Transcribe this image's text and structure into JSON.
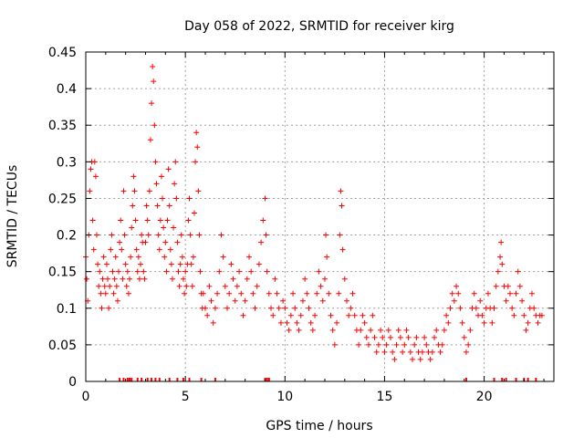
{
  "chart_data": {
    "type": "scatter",
    "title": "Day 058 of 2022, SRMTID for receiver kirg",
    "xlabel": "GPS time / hours",
    "ylabel": "SRMTID / TECUs",
    "xlim": [
      0,
      23.5
    ],
    "ylim": [
      0,
      0.45
    ],
    "x_ticks": [
      0,
      5,
      10,
      15,
      20
    ],
    "x_tick_labels": [
      "0",
      "5",
      "10",
      "15",
      "20"
    ],
    "y_ticks": [
      0,
      0.05,
      0.1,
      0.15,
      0.2,
      0.25,
      0.3,
      0.35,
      0.4,
      0.45
    ],
    "y_tick_labels": [
      "0",
      "0.05",
      "0.1",
      "0.15",
      "0.2",
      "0.25",
      "0.3",
      "0.35",
      "0.4",
      "0.45"
    ],
    "grid": true,
    "marker": "plus",
    "color": "#ff0000",
    "series": [
      {
        "name": "SRMTID",
        "points": [
          [
            0.0,
            0.17
          ],
          [
            0.05,
            0.14
          ],
          [
            0.1,
            0.11
          ],
          [
            0.15,
            0.2
          ],
          [
            0.2,
            0.26
          ],
          [
            0.25,
            0.29
          ],
          [
            0.3,
            0.3
          ],
          [
            0.35,
            0.22
          ],
          [
            0.4,
            0.18
          ],
          [
            0.45,
            0.3
          ],
          [
            0.5,
            0.28
          ],
          [
            0.55,
            0.2
          ],
          [
            0.6,
            0.16
          ],
          [
            0.65,
            0.13
          ],
          [
            0.7,
            0.15
          ],
          [
            0.75,
            0.12
          ],
          [
            0.8,
            0.1
          ],
          [
            0.85,
            0.14
          ],
          [
            0.9,
            0.17
          ],
          [
            0.95,
            0.13
          ],
          [
            1.0,
            0.12
          ],
          [
            1.05,
            0.16
          ],
          [
            1.1,
            0.14
          ],
          [
            1.15,
            0.1
          ],
          [
            1.2,
            0.13
          ],
          [
            1.25,
            0.18
          ],
          [
            1.3,
            0.2
          ],
          [
            1.35,
            0.15
          ],
          [
            1.4,
            0.12
          ],
          [
            1.45,
            0.14
          ],
          [
            1.5,
            0.17
          ],
          [
            1.55,
            0.13
          ],
          [
            1.6,
            0.11
          ],
          [
            1.65,
            0.15
          ],
          [
            1.7,
            0.19
          ],
          [
            1.75,
            0.22
          ],
          [
            1.8,
            0.18
          ],
          [
            1.85,
            0.14
          ],
          [
            1.9,
            0.26
          ],
          [
            1.95,
            0.2
          ],
          [
            2.0,
            0.16
          ],
          [
            2.05,
            0.13
          ],
          [
            2.1,
            0.15
          ],
          [
            2.15,
            0.12
          ],
          [
            2.2,
            0.14
          ],
          [
            2.25,
            0.17
          ],
          [
            2.3,
            0.21
          ],
          [
            2.35,
            0.24
          ],
          [
            2.4,
            0.28
          ],
          [
            2.45,
            0.26
          ],
          [
            2.5,
            0.22
          ],
          [
            2.55,
            0.18
          ],
          [
            2.6,
            0.15
          ],
          [
            2.65,
            0.17
          ],
          [
            2.7,
            0.14
          ],
          [
            2.75,
            0.16
          ],
          [
            2.8,
            0.2
          ],
          [
            2.85,
            0.19
          ],
          [
            2.9,
            0.15
          ],
          [
            2.95,
            0.14
          ],
          [
            3.0,
            0.19
          ],
          [
            3.05,
            0.24
          ],
          [
            3.1,
            0.22
          ],
          [
            3.15,
            0.2
          ],
          [
            3.2,
            0.26
          ],
          [
            3.25,
            0.33
          ],
          [
            3.3,
            0.38
          ],
          [
            3.35,
            0.43
          ],
          [
            3.4,
            0.41
          ],
          [
            3.45,
            0.35
          ],
          [
            3.5,
            0.3
          ],
          [
            3.55,
            0.27
          ],
          [
            3.6,
            0.24
          ],
          [
            3.65,
            0.2
          ],
          [
            3.7,
            0.18
          ],
          [
            3.75,
            0.22
          ],
          [
            3.8,
            0.28
          ],
          [
            3.85,
            0.25
          ],
          [
            3.9,
            0.21
          ],
          [
            3.95,
            0.17
          ],
          [
            4.0,
            0.19
          ],
          [
            4.05,
            0.15
          ],
          [
            4.1,
            0.22
          ],
          [
            4.15,
            0.29
          ],
          [
            4.2,
            0.24
          ],
          [
            4.25,
            0.18
          ],
          [
            4.3,
            0.16
          ],
          [
            4.35,
            0.14
          ],
          [
            4.4,
            0.21
          ],
          [
            4.45,
            0.27
          ],
          [
            4.5,
            0.3
          ],
          [
            4.55,
            0.25
          ],
          [
            4.6,
            0.19
          ],
          [
            4.65,
            0.15
          ],
          [
            4.7,
            0.13
          ],
          [
            4.75,
            0.16
          ],
          [
            4.8,
            0.2
          ],
          [
            4.85,
            0.17
          ],
          [
            4.9,
            0.14
          ],
          [
            4.95,
            0.12
          ],
          [
            5.0,
            0.15
          ],
          [
            5.05,
            0.13
          ],
          [
            5.1,
            0.16
          ],
          [
            5.15,
            0.22
          ],
          [
            5.2,
            0.25
          ],
          [
            5.25,
            0.2
          ],
          [
            5.3,
            0.16
          ],
          [
            5.35,
            0.13
          ],
          [
            5.4,
            0.17
          ],
          [
            5.45,
            0.23
          ],
          [
            5.5,
            0.3
          ],
          [
            5.55,
            0.34
          ],
          [
            5.6,
            0.32
          ],
          [
            5.65,
            0.26
          ],
          [
            5.7,
            0.2
          ],
          [
            5.75,
            0.15
          ],
          [
            5.8,
            0.12
          ],
          [
            5.85,
            0.1
          ],
          [
            5.9,
            0.12
          ],
          [
            6.0,
            0.1
          ],
          [
            6.1,
            0.09
          ],
          [
            6.2,
            0.13
          ],
          [
            6.3,
            0.11
          ],
          [
            6.4,
            0.08
          ],
          [
            6.5,
            0.1
          ],
          [
            6.6,
            0.12
          ],
          [
            6.7,
            0.15
          ],
          [
            6.8,
            0.2
          ],
          [
            6.9,
            0.17
          ],
          [
            7.0,
            0.13
          ],
          [
            7.1,
            0.1
          ],
          [
            7.2,
            0.12
          ],
          [
            7.3,
            0.16
          ],
          [
            7.4,
            0.14
          ],
          [
            7.5,
            0.11
          ],
          [
            7.6,
            0.13
          ],
          [
            7.7,
            0.15
          ],
          [
            7.8,
            0.12
          ],
          [
            7.9,
            0.09
          ],
          [
            8.0,
            0.11
          ],
          [
            8.1,
            0.14
          ],
          [
            8.2,
            0.17
          ],
          [
            8.3,
            0.15
          ],
          [
            8.4,
            0.12
          ],
          [
            8.5,
            0.1
          ],
          [
            8.6,
            0.13
          ],
          [
            8.7,
            0.16
          ],
          [
            8.8,
            0.19
          ],
          [
            8.9,
            0.22
          ],
          [
            9.0,
            0.25
          ],
          [
            9.05,
            0.2
          ],
          [
            9.1,
            0.15
          ],
          [
            9.2,
            0.12
          ],
          [
            9.3,
            0.1
          ],
          [
            9.4,
            0.09
          ],
          [
            9.5,
            0.14
          ],
          [
            9.6,
            0.12
          ],
          [
            9.7,
            0.1
          ],
          [
            9.8,
            0.08
          ],
          [
            9.9,
            0.11
          ],
          [
            10.0,
            0.1
          ],
          [
            10.1,
            0.08
          ],
          [
            10.2,
            0.07
          ],
          [
            10.3,
            0.09
          ],
          [
            10.4,
            0.12
          ],
          [
            10.5,
            0.1
          ],
          [
            10.6,
            0.08
          ],
          [
            10.7,
            0.07
          ],
          [
            10.8,
            0.09
          ],
          [
            10.9,
            0.11
          ],
          [
            11.0,
            0.14
          ],
          [
            11.1,
            0.12
          ],
          [
            11.2,
            0.1
          ],
          [
            11.3,
            0.08
          ],
          [
            11.4,
            0.07
          ],
          [
            11.5,
            0.09
          ],
          [
            11.6,
            0.12
          ],
          [
            11.7,
            0.15
          ],
          [
            11.8,
            0.13
          ],
          [
            11.9,
            0.11
          ],
          [
            12.0,
            0.14
          ],
          [
            12.05,
            0.2
          ],
          [
            12.1,
            0.17
          ],
          [
            12.2,
            0.12
          ],
          [
            12.3,
            0.09
          ],
          [
            12.4,
            0.07
          ],
          [
            12.5,
            0.05
          ],
          [
            12.6,
            0.08
          ],
          [
            12.7,
            0.12
          ],
          [
            12.75,
            0.2
          ],
          [
            12.8,
            0.26
          ],
          [
            12.85,
            0.24
          ],
          [
            12.9,
            0.18
          ],
          [
            13.0,
            0.14
          ],
          [
            13.1,
            0.11
          ],
          [
            13.2,
            0.09
          ],
          [
            13.3,
            0.1
          ],
          [
            13.4,
            0.12
          ],
          [
            13.5,
            0.09
          ],
          [
            13.6,
            0.07
          ],
          [
            13.7,
            0.05
          ],
          [
            13.8,
            0.07
          ],
          [
            13.9,
            0.09
          ],
          [
            14.0,
            0.08
          ],
          [
            14.1,
            0.06
          ],
          [
            14.2,
            0.05
          ],
          [
            14.3,
            0.07
          ],
          [
            14.4,
            0.09
          ],
          [
            14.5,
            0.06
          ],
          [
            14.6,
            0.04
          ],
          [
            14.7,
            0.05
          ],
          [
            14.8,
            0.07
          ],
          [
            14.9,
            0.06
          ],
          [
            15.0,
            0.04
          ],
          [
            15.1,
            0.05
          ],
          [
            15.2,
            0.07
          ],
          [
            15.3,
            0.06
          ],
          [
            15.4,
            0.04
          ],
          [
            15.5,
            0.03
          ],
          [
            15.6,
            0.05
          ],
          [
            15.7,
            0.07
          ],
          [
            15.8,
            0.06
          ],
          [
            15.9,
            0.04
          ],
          [
            16.0,
            0.05
          ],
          [
            16.1,
            0.07
          ],
          [
            16.2,
            0.06
          ],
          [
            16.3,
            0.04
          ],
          [
            16.4,
            0.03
          ],
          [
            16.5,
            0.05
          ],
          [
            16.6,
            0.06
          ],
          [
            16.7,
            0.04
          ],
          [
            16.8,
            0.03
          ],
          [
            16.9,
            0.04
          ],
          [
            17.0,
            0.06
          ],
          [
            17.1,
            0.05
          ],
          [
            17.2,
            0.04
          ],
          [
            17.3,
            0.03
          ],
          [
            17.4,
            0.04
          ],
          [
            17.5,
            0.06
          ],
          [
            17.6,
            0.07
          ],
          [
            17.7,
            0.05
          ],
          [
            17.8,
            0.04
          ],
          [
            17.9,
            0.05
          ],
          [
            18.0,
            0.07
          ],
          [
            18.1,
            0.09
          ],
          [
            18.2,
            0.08
          ],
          [
            18.3,
            0.1
          ],
          [
            18.4,
            0.12
          ],
          [
            18.5,
            0.11
          ],
          [
            18.6,
            0.13
          ],
          [
            18.7,
            0.12
          ],
          [
            18.8,
            0.1
          ],
          [
            18.9,
            0.08
          ],
          [
            19.0,
            0.06
          ],
          [
            19.1,
            0.04
          ],
          [
            19.2,
            0.05
          ],
          [
            19.3,
            0.07
          ],
          [
            19.4,
            0.1
          ],
          [
            19.5,
            0.12
          ],
          [
            19.6,
            0.1
          ],
          [
            19.7,
            0.09
          ],
          [
            19.8,
            0.11
          ],
          [
            19.9,
            0.09
          ],
          [
            20.0,
            0.08
          ],
          [
            20.1,
            0.1
          ],
          [
            20.2,
            0.12
          ],
          [
            20.3,
            0.1
          ],
          [
            20.4,
            0.08
          ],
          [
            20.5,
            0.1
          ],
          [
            20.6,
            0.13
          ],
          [
            20.7,
            0.15
          ],
          [
            20.8,
            0.17
          ],
          [
            20.85,
            0.19
          ],
          [
            20.9,
            0.16
          ],
          [
            21.0,
            0.13
          ],
          [
            21.1,
            0.11
          ],
          [
            21.2,
            0.13
          ],
          [
            21.3,
            0.12
          ],
          [
            21.4,
            0.1
          ],
          [
            21.5,
            0.09
          ],
          [
            21.6,
            0.12
          ],
          [
            21.7,
            0.15
          ],
          [
            21.8,
            0.13
          ],
          [
            21.9,
            0.11
          ],
          [
            22.0,
            0.09
          ],
          [
            22.1,
            0.07
          ],
          [
            22.2,
            0.08
          ],
          [
            22.3,
            0.1
          ],
          [
            22.4,
            0.12
          ],
          [
            22.5,
            0.1
          ],
          [
            22.6,
            0.09
          ],
          [
            22.7,
            0.08
          ],
          [
            22.8,
            0.09
          ],
          [
            22.9,
            0.09
          ]
        ]
      }
    ],
    "x_rug": [
      1.7,
      1.9,
      2.1,
      2.2,
      2.3,
      2.6,
      2.8,
      3.1,
      3.3,
      3.5,
      3.7,
      4.2,
      4.6,
      4.9,
      5.2,
      5.8,
      6.5,
      9.0,
      9.1,
      9.2,
      19.1,
      20.5,
      20.9,
      21.1,
      21.6,
      22.0,
      22.2,
      22.6
    ]
  }
}
